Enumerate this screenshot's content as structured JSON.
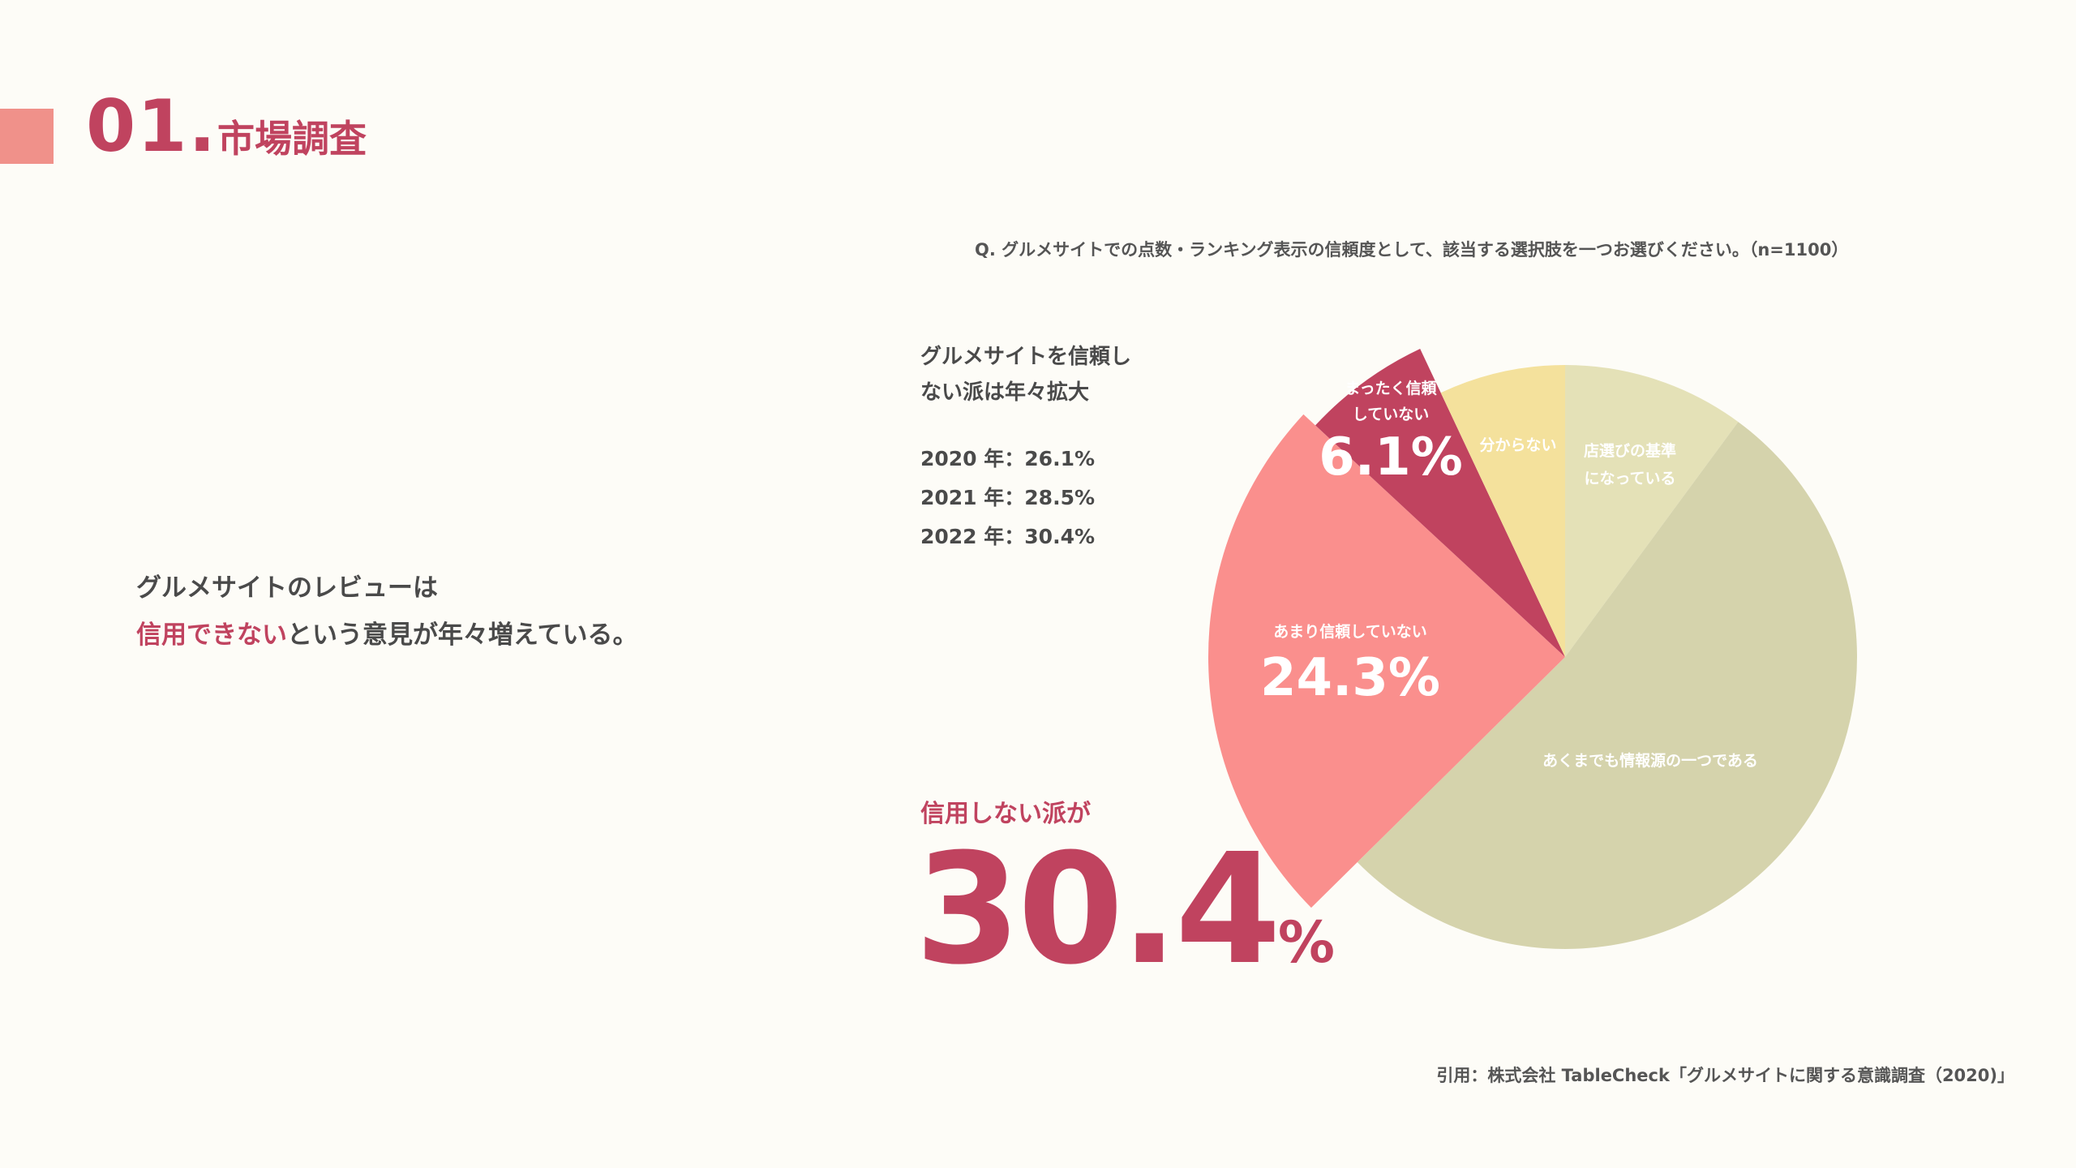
{
  "header": {
    "number": "01.",
    "title": "市場調査"
  },
  "lead": {
    "line1": "グルメサイトのレビューは",
    "line2_highlight": "信用できない",
    "line2_rest": "という意見が年々増えている。"
  },
  "side": {
    "heading_line1": "グルメサイトを信頼し",
    "heading_line2": "ない派は年々拡大",
    "years": [
      "2020 年：26.1%",
      "2021 年：28.5%",
      "2022 年：30.4%"
    ],
    "big_label": "信用しない派が",
    "big_value": "30.4",
    "big_unit": "%"
  },
  "source": "引用：株式会社 TableCheck「グルメサイトに関する意識調査（2020)」",
  "colors": {
    "accent": "#c0435f",
    "header_block": "#f0918a"
  },
  "chart_data": {
    "type": "pie",
    "title": "Q. グルメサイトでの点数・ランキング表示の信頼度として、該当する選択肢を一つお選びください。（n=1100）",
    "start": "top",
    "direction": "clockwise",
    "slices": [
      {
        "label_lines": [
          "店選びの基準",
          "になっている"
        ],
        "value": 10.1,
        "color": "#e4e1b7",
        "value_label": ""
      },
      {
        "label_lines": [
          "あくまでも情報源の一つである"
        ],
        "value": 52.5,
        "color": "#d5d3ac",
        "value_label": ""
      },
      {
        "label_lines": [
          "あまり信頼していない"
        ],
        "value": 24.3,
        "color": "#fa8f8d",
        "value_label": "24.3%",
        "exploded": true
      },
      {
        "label_lines": [
          "まったく信頼",
          "していない"
        ],
        "value": 6.1,
        "color": "#c0435f",
        "value_label": "6.1%",
        "exploded": true
      },
      {
        "label_lines": [
          "分からない"
        ],
        "value": 7.0,
        "color": "#f4e19c",
        "value_label": ""
      }
    ]
  }
}
